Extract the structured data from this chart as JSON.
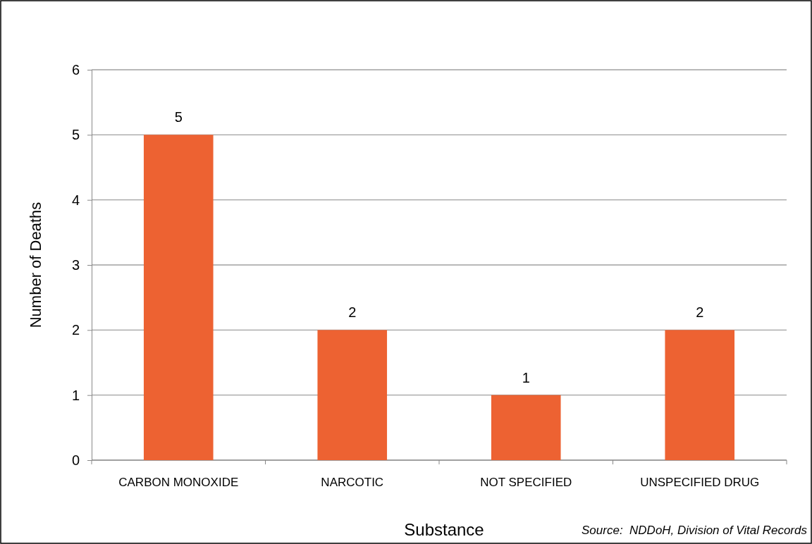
{
  "chart_data": {
    "type": "bar",
    "xlabel": "Substance",
    "ylabel": "Number of Deaths",
    "categories": [
      "CARBON MONOXIDE",
      "NARCOTIC",
      "NOT SPECIFIED",
      "UNSPECIFIED DRUG"
    ],
    "values": [
      5,
      2,
      1,
      2
    ],
    "color": "#ed6232",
    "ylim": [
      0,
      6
    ],
    "yticks": [
      0,
      1,
      2,
      3,
      4,
      5,
      6
    ],
    "grid": "y",
    "data_labels": true,
    "annotations": [
      "Source:  NDDoH, Division of Vital Records"
    ]
  }
}
